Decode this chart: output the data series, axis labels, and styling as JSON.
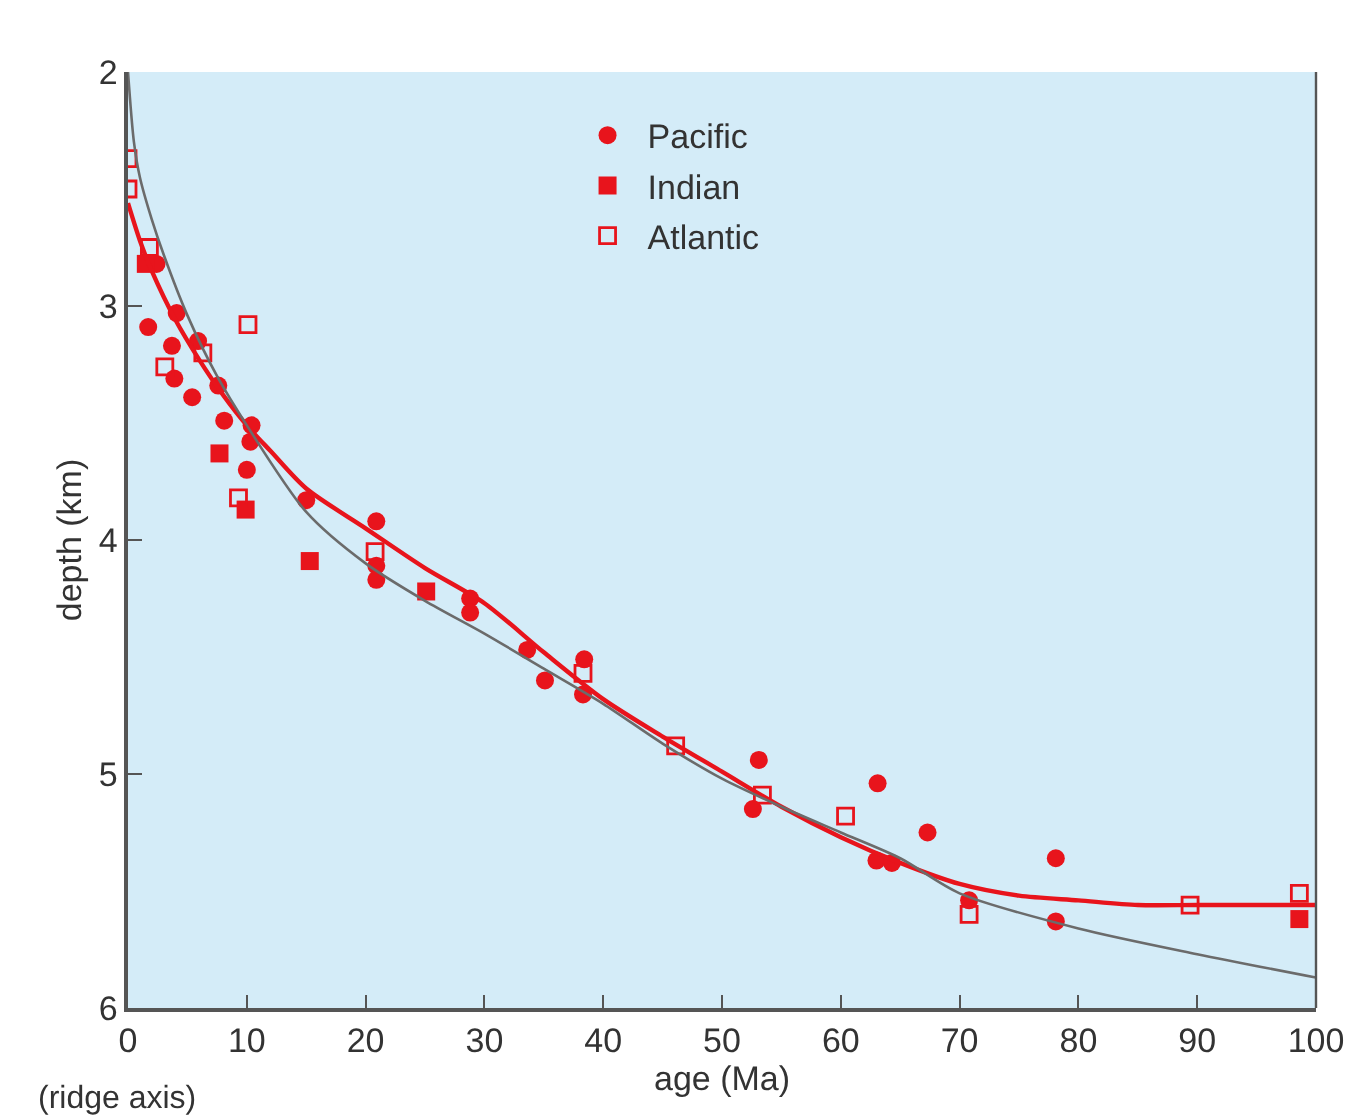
{
  "chart_data": {
    "type": "scatter",
    "xlabel": "age (Ma)",
    "ylabel": "depth (km)",
    "annotations": [
      "(ridge axis)"
    ],
    "xlim": [
      0,
      100
    ],
    "xticks": [
      0,
      10,
      20,
      30,
      40,
      50,
      60,
      70,
      80,
      90,
      100
    ],
    "ylim": [
      6,
      2
    ],
    "yticks": [
      2,
      3,
      4,
      5,
      6
    ],
    "grid": false,
    "legend": "top",
    "series": [
      {
        "name": "Pacific",
        "marker": "circle",
        "color": "#e8141c",
        "x": [
          2.4,
          1.7,
          4.1,
          3.7,
          5.9,
          3.9,
          7.6,
          5.4,
          8.1,
          10.4,
          10.3,
          10.0,
          15.0,
          20.9,
          20.9,
          20.9,
          28.8,
          28.8,
          33.6,
          35.1,
          38.4,
          38.3,
          53.1,
          52.6,
          63.1,
          67.3,
          63.0,
          64.3,
          70.8,
          78.1,
          78.1
        ],
        "values": [
          2.82,
          3.09,
          3.03,
          3.17,
          3.15,
          3.31,
          3.34,
          3.39,
          3.49,
          3.51,
          3.58,
          3.7,
          3.83,
          3.92,
          4.11,
          4.17,
          4.25,
          4.31,
          4.47,
          4.6,
          4.51,
          4.66,
          4.94,
          5.15,
          5.04,
          5.25,
          5.37,
          5.38,
          5.54,
          5.36,
          5.63
        ]
      },
      {
        "name": "Indian",
        "marker": "square",
        "color": "#e8141c",
        "x": [
          1.5,
          7.7,
          9.9,
          15.3,
          25.1,
          98.6
        ],
        "values": [
          2.82,
          3.63,
          3.87,
          4.09,
          4.22,
          5.62
        ]
      },
      {
        "name": "Atlantic",
        "marker": "square-open",
        "color": "#e8141c",
        "x": [
          0.0,
          0.0,
          1.8,
          10.1,
          6.3,
          3.1,
          9.3,
          20.8,
          38.3,
          46.1,
          53.4,
          60.4,
          70.8,
          89.4,
          98.6
        ],
        "values": [
          2.37,
          2.5,
          2.75,
          3.08,
          3.2,
          3.26,
          3.82,
          4.05,
          4.57,
          4.88,
          5.09,
          5.18,
          5.6,
          5.56,
          5.51
        ]
      },
      {
        "type": "line",
        "marker": "none",
        "color": "#e8141c",
        "x": [
          0,
          1,
          2,
          4,
          6,
          8,
          10,
          12,
          15,
          20,
          25,
          30,
          35,
          40,
          45,
          50,
          55,
          60,
          65,
          70,
          75,
          80,
          85,
          90,
          100
        ],
        "values": [
          2.56,
          2.72,
          2.85,
          3.06,
          3.23,
          3.38,
          3.51,
          3.62,
          3.78,
          3.95,
          4.12,
          4.27,
          4.48,
          4.68,
          4.84,
          4.99,
          5.14,
          5.27,
          5.38,
          5.47,
          5.52,
          5.54,
          5.56,
          5.56,
          5.56
        ]
      },
      {
        "type": "line",
        "marker": "none",
        "color": "#6b6b6b",
        "x": [
          0,
          0.5,
          1,
          2,
          3,
          5,
          7.5,
          10,
          15,
          20,
          25,
          30,
          35,
          40,
          45,
          50,
          55,
          60,
          65,
          70,
          80,
          90,
          100
        ],
        "values": [
          2.0,
          2.3,
          2.45,
          2.63,
          2.78,
          3.04,
          3.3,
          3.51,
          3.88,
          4.1,
          4.26,
          4.4,
          4.55,
          4.7,
          4.87,
          5.02,
          5.14,
          5.25,
          5.36,
          5.51,
          5.66,
          5.77,
          5.87
        ]
      }
    ]
  }
}
